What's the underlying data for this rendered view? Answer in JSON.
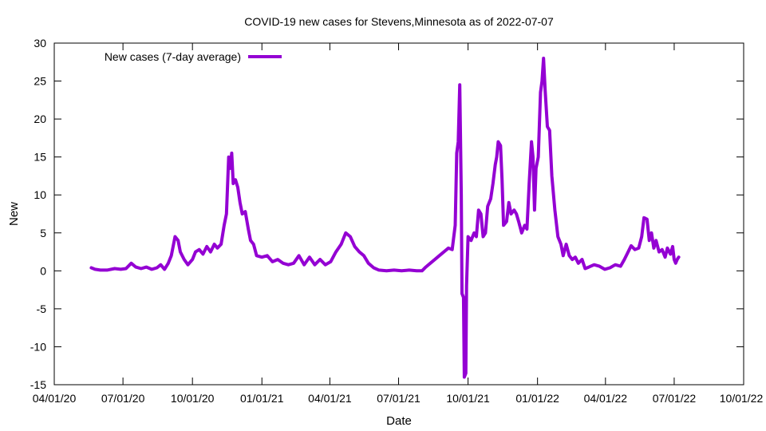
{
  "chart_data": {
    "type": "line",
    "title": "COVID-19 new cases for Stevens,Minnesota as of 2022-07-07",
    "xlabel": "Date",
    "ylabel": "New",
    "xlim": [
      "2020-04-01",
      "2022-10-01"
    ],
    "ylim": [
      -15,
      30
    ],
    "x_ticks": [
      "04/01/20",
      "07/01/20",
      "10/01/20",
      "01/01/21",
      "04/01/21",
      "07/01/21",
      "10/01/21",
      "01/01/22",
      "04/01/22",
      "07/01/22",
      "10/01/22"
    ],
    "y_ticks": [
      -15,
      -10,
      -5,
      0,
      5,
      10,
      15,
      20,
      25,
      30
    ],
    "grid": false,
    "legend_position": "top-left",
    "series": [
      {
        "name": "New cases (7-day average)",
        "color": "#9400d3",
        "points": [
          [
            "2020-05-20",
            0.4
          ],
          [
            "2020-05-25",
            0.2
          ],
          [
            "2020-06-01",
            0.1
          ],
          [
            "2020-06-10",
            0.1
          ],
          [
            "2020-06-20",
            0.3
          ],
          [
            "2020-06-28",
            0.2
          ],
          [
            "2020-07-05",
            0.3
          ],
          [
            "2020-07-12",
            1.0
          ],
          [
            "2020-07-18",
            0.5
          ],
          [
            "2020-07-25",
            0.3
          ],
          [
            "2020-08-01",
            0.5
          ],
          [
            "2020-08-08",
            0.2
          ],
          [
            "2020-08-15",
            0.4
          ],
          [
            "2020-08-20",
            0.8
          ],
          [
            "2020-08-25",
            0.2
          ],
          [
            "2020-08-30",
            1.0
          ],
          [
            "2020-09-03",
            2.0
          ],
          [
            "2020-09-08",
            4.5
          ],
          [
            "2020-09-12",
            4.0
          ],
          [
            "2020-09-15",
            2.5
          ],
          [
            "2020-09-20",
            1.5
          ],
          [
            "2020-09-25",
            0.8
          ],
          [
            "2020-10-01",
            1.5
          ],
          [
            "2020-10-05",
            2.5
          ],
          [
            "2020-10-10",
            2.8
          ],
          [
            "2020-10-15",
            2.2
          ],
          [
            "2020-10-20",
            3.2
          ],
          [
            "2020-10-25",
            2.5
          ],
          [
            "2020-10-30",
            3.5
          ],
          [
            "2020-11-03",
            3.0
          ],
          [
            "2020-11-08",
            3.5
          ],
          [
            "2020-11-12",
            6.0
          ],
          [
            "2020-11-15",
            7.5
          ],
          [
            "2020-11-18",
            15.0
          ],
          [
            "2020-11-20",
            13.5
          ],
          [
            "2020-11-22",
            15.5
          ],
          [
            "2020-11-24",
            11.5
          ],
          [
            "2020-11-27",
            12.0
          ],
          [
            "2020-11-30",
            11.0
          ],
          [
            "2020-12-03",
            9.0
          ],
          [
            "2020-12-06",
            7.5
          ],
          [
            "2020-12-10",
            7.8
          ],
          [
            "2020-12-14",
            5.5
          ],
          [
            "2020-12-17",
            4.0
          ],
          [
            "2020-12-21",
            3.5
          ],
          [
            "2020-12-25",
            2.0
          ],
          [
            "2021-01-01",
            1.8
          ],
          [
            "2021-01-08",
            2.0
          ],
          [
            "2021-01-15",
            1.2
          ],
          [
            "2021-01-22",
            1.5
          ],
          [
            "2021-01-29",
            1.0
          ],
          [
            "2021-02-05",
            0.8
          ],
          [
            "2021-02-12",
            1.0
          ],
          [
            "2021-02-19",
            2.0
          ],
          [
            "2021-02-26",
            0.8
          ],
          [
            "2021-03-05",
            1.8
          ],
          [
            "2021-03-12",
            0.8
          ],
          [
            "2021-03-19",
            1.5
          ],
          [
            "2021-03-26",
            0.8
          ],
          [
            "2021-04-02",
            1.2
          ],
          [
            "2021-04-09",
            2.5
          ],
          [
            "2021-04-16",
            3.5
          ],
          [
            "2021-04-22",
            5.0
          ],
          [
            "2021-04-28",
            4.5
          ],
          [
            "2021-05-04",
            3.2
          ],
          [
            "2021-05-10",
            2.5
          ],
          [
            "2021-05-16",
            2.0
          ],
          [
            "2021-05-22",
            1.0
          ],
          [
            "2021-05-29",
            0.4
          ],
          [
            "2021-06-05",
            0.1
          ],
          [
            "2021-06-15",
            0.0
          ],
          [
            "2021-06-25",
            0.1
          ],
          [
            "2021-07-05",
            0.0
          ],
          [
            "2021-07-15",
            0.1
          ],
          [
            "2021-07-25",
            0.0
          ],
          [
            "2021-08-01",
            0.0
          ],
          [
            "2021-08-06",
            0.5
          ],
          [
            "2021-08-12",
            1.0
          ],
          [
            "2021-08-18",
            1.5
          ],
          [
            "2021-08-24",
            2.0
          ],
          [
            "2021-08-30",
            2.5
          ],
          [
            "2021-09-05",
            3.0
          ],
          [
            "2021-09-10",
            2.8
          ],
          [
            "2021-09-14",
            6.0
          ],
          [
            "2021-09-16",
            15.5
          ],
          [
            "2021-09-18",
            17.0
          ],
          [
            "2021-09-20",
            24.5
          ],
          [
            "2021-09-22",
            10.0
          ],
          [
            "2021-09-23",
            -3.0
          ],
          [
            "2021-09-25",
            -3.5
          ],
          [
            "2021-09-26",
            -14.0
          ],
          [
            "2021-09-28",
            -13.5
          ],
          [
            "2021-09-29",
            -2.0
          ],
          [
            "2021-10-01",
            4.5
          ],
          [
            "2021-10-05",
            4.0
          ],
          [
            "2021-10-09",
            5.0
          ],
          [
            "2021-10-12",
            4.5
          ],
          [
            "2021-10-15",
            8.0
          ],
          [
            "2021-10-18",
            7.5
          ],
          [
            "2021-10-21",
            4.5
          ],
          [
            "2021-10-24",
            5.0
          ],
          [
            "2021-10-27",
            8.5
          ],
          [
            "2021-10-31",
            9.5
          ],
          [
            "2021-11-03",
            11.5
          ],
          [
            "2021-11-06",
            14.0
          ],
          [
            "2021-11-08",
            15.0
          ],
          [
            "2021-11-10",
            17.0
          ],
          [
            "2021-11-13",
            16.5
          ],
          [
            "2021-11-15",
            12.0
          ],
          [
            "2021-11-17",
            6.0
          ],
          [
            "2021-11-21",
            6.5
          ],
          [
            "2021-11-24",
            9.0
          ],
          [
            "2021-11-27",
            7.5
          ],
          [
            "2021-12-01",
            8.0
          ],
          [
            "2021-12-04",
            7.5
          ],
          [
            "2021-12-07",
            6.5
          ],
          [
            "2021-12-11",
            5.0
          ],
          [
            "2021-12-15",
            6.0
          ],
          [
            "2021-12-18",
            5.5
          ],
          [
            "2021-12-21",
            11.5
          ],
          [
            "2021-12-24",
            17.0
          ],
          [
            "2021-12-26",
            15.0
          ],
          [
            "2021-12-28",
            8.0
          ],
          [
            "2021-12-30",
            13.5
          ],
          [
            "2022-01-02",
            15.0
          ],
          [
            "2022-01-05",
            23.5
          ],
          [
            "2022-01-07",
            25.0
          ],
          [
            "2022-01-09",
            28.0
          ],
          [
            "2022-01-11",
            24.0
          ],
          [
            "2022-01-14",
            19.0
          ],
          [
            "2022-01-17",
            18.5
          ],
          [
            "2022-01-20",
            12.5
          ],
          [
            "2022-01-24",
            8.0
          ],
          [
            "2022-01-28",
            4.5
          ],
          [
            "2022-02-01",
            3.5
          ],
          [
            "2022-02-04",
            2.0
          ],
          [
            "2022-02-08",
            3.5
          ],
          [
            "2022-02-12",
            2.0
          ],
          [
            "2022-02-16",
            1.5
          ],
          [
            "2022-02-20",
            1.8
          ],
          [
            "2022-02-24",
            1.0
          ],
          [
            "2022-03-01",
            1.5
          ],
          [
            "2022-03-05",
            0.3
          ],
          [
            "2022-03-10",
            0.5
          ],
          [
            "2022-03-17",
            0.8
          ],
          [
            "2022-03-24",
            0.6
          ],
          [
            "2022-03-31",
            0.2
          ],
          [
            "2022-04-07",
            0.4
          ],
          [
            "2022-04-14",
            0.8
          ],
          [
            "2022-04-21",
            0.6
          ],
          [
            "2022-04-26",
            1.5
          ],
          [
            "2022-05-01",
            2.5
          ],
          [
            "2022-05-05",
            3.3
          ],
          [
            "2022-05-10",
            2.8
          ],
          [
            "2022-05-15",
            3.0
          ],
          [
            "2022-05-19",
            4.5
          ],
          [
            "2022-05-22",
            7.0
          ],
          [
            "2022-05-26",
            6.8
          ],
          [
            "2022-05-29",
            4.0
          ],
          [
            "2022-06-01",
            5.0
          ],
          [
            "2022-06-04",
            3.0
          ],
          [
            "2022-06-07",
            4.0
          ],
          [
            "2022-06-11",
            2.5
          ],
          [
            "2022-06-15",
            2.8
          ],
          [
            "2022-06-19",
            1.8
          ],
          [
            "2022-06-22",
            3.0
          ],
          [
            "2022-06-26",
            2.2
          ],
          [
            "2022-06-29",
            3.2
          ],
          [
            "2022-07-01",
            1.5
          ],
          [
            "2022-07-03",
            1.0
          ],
          [
            "2022-07-05",
            1.5
          ],
          [
            "2022-07-07",
            1.8
          ]
        ]
      }
    ]
  }
}
